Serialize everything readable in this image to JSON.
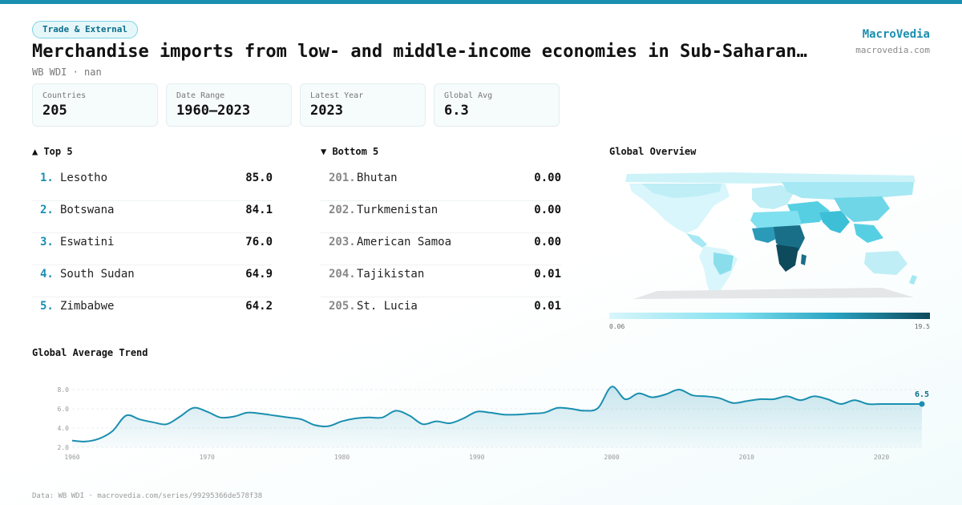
{
  "header": {
    "tag": "Trade & External",
    "title": "Merchandise imports from low- and middle-income economies in Sub-Saharan…",
    "subtitle": "WB WDI · nan",
    "brand": "MacroVedia",
    "brand_url": "macrovedia.com"
  },
  "stats": [
    {
      "label": "Countries",
      "value": "205"
    },
    {
      "label": "Date Range",
      "value": "1960–2023"
    },
    {
      "label": "Latest Year",
      "value": "2023"
    },
    {
      "label": "Global Avg",
      "value": "6.3"
    }
  ],
  "top5": {
    "heading": "▲ Top 5",
    "items": [
      {
        "rank": "1.",
        "name": "Lesotho",
        "value": "85.0"
      },
      {
        "rank": "2.",
        "name": "Botswana",
        "value": "84.1"
      },
      {
        "rank": "3.",
        "name": "Eswatini",
        "value": "76.0"
      },
      {
        "rank": "4.",
        "name": "South Sudan",
        "value": "64.9"
      },
      {
        "rank": "5.",
        "name": "Zimbabwe",
        "value": "64.2"
      }
    ]
  },
  "bottom5": {
    "heading": "▼ Bottom 5",
    "items": [
      {
        "rank": "201.",
        "name": "Bhutan",
        "value": "0.00"
      },
      {
        "rank": "202.",
        "name": "Turkmenistan",
        "value": "0.00"
      },
      {
        "rank": "203.",
        "name": "American Samoa",
        "value": "0.00"
      },
      {
        "rank": "204.",
        "name": "Tajikistan",
        "value": "0.01"
      },
      {
        "rank": "205.",
        "name": "St. Lucia",
        "value": "0.01"
      }
    ]
  },
  "map": {
    "heading": "Global Overview",
    "scale_min": "0.06",
    "scale_max": "19.5",
    "colors": {
      "low": "#d8f6fb",
      "mid": "#56cfe3",
      "high": "#0d4a5c",
      "nodata": "#e4e6e8"
    }
  },
  "trend": {
    "heading": "Global Average Trend",
    "last_label": "6.5"
  },
  "footer": "Data: WB WDI · macrovedia.com/series/99295366de578f38",
  "chart_data": {
    "type": "area",
    "xlabel": "",
    "ylabel": "",
    "xlim": [
      1960,
      2023
    ],
    "ylim": [
      2.0,
      9.0
    ],
    "yticks": [
      2.0,
      4.0,
      6.0,
      8.0
    ],
    "xticks": [
      1960,
      1970,
      1980,
      1990,
      2000,
      2010,
      2020
    ],
    "grid": true,
    "color": "#1a8fb0",
    "x": [
      1960,
      1961,
      1962,
      1963,
      1964,
      1965,
      1966,
      1967,
      1968,
      1969,
      1970,
      1971,
      1972,
      1973,
      1974,
      1975,
      1976,
      1977,
      1978,
      1979,
      1980,
      1981,
      1982,
      1983,
      1984,
      1985,
      1986,
      1987,
      1988,
      1989,
      1990,
      1991,
      1992,
      1993,
      1994,
      1995,
      1996,
      1997,
      1998,
      1999,
      2000,
      2001,
      2002,
      2003,
      2004,
      2005,
      2006,
      2007,
      2008,
      2009,
      2010,
      2011,
      2012,
      2013,
      2014,
      2015,
      2016,
      2017,
      2018,
      2019,
      2020,
      2021,
      2022,
      2023
    ],
    "y": [
      2.7,
      2.6,
      2.9,
      3.7,
      5.3,
      4.9,
      4.6,
      4.4,
      5.2,
      6.1,
      5.7,
      5.1,
      5.2,
      5.6,
      5.5,
      5.3,
      5.1,
      4.9,
      4.3,
      4.2,
      4.7,
      5.0,
      5.1,
      5.1,
      5.8,
      5.3,
      4.4,
      4.7,
      4.5,
      5.0,
      5.7,
      5.6,
      5.4,
      5.4,
      5.5,
      5.6,
      6.1,
      6.0,
      5.8,
      6.1,
      8.3,
      7.0,
      7.6,
      7.2,
      7.5,
      8.0,
      7.4,
      7.3,
      7.1,
      6.6,
      6.8,
      7.0,
      7.0,
      7.3,
      6.9,
      7.3,
      7.0,
      6.5,
      6.9,
      6.5,
      6.5,
      6.5,
      6.5,
      6.5
    ]
  }
}
